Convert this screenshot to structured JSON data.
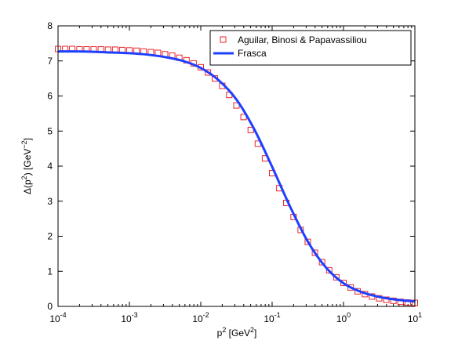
{
  "chart_data": {
    "type": "line",
    "x_scale": "log",
    "xlim": [
      0.0001,
      10
    ],
    "ylim": [
      0,
      8
    ],
    "xlabel": {
      "base": "p",
      "sup": "2",
      "unit_open": " [GeV",
      "unit_sup": "2",
      "unit_close": "]"
    },
    "ylabel": {
      "prefix": "Δ(p",
      "sup": "2",
      "middle": ") [GeV",
      "unit_sup": "−2",
      "suffix": "]"
    },
    "x_ticks": [
      {
        "base": "10",
        "exp": "-4"
      },
      {
        "base": "10",
        "exp": "-3"
      },
      {
        "base": "10",
        "exp": "-2"
      },
      {
        "base": "10",
        "exp": "-1"
      },
      {
        "base": "10",
        "exp": "0"
      },
      {
        "base": "10",
        "exp": "1"
      }
    ],
    "y_ticks": [
      "0",
      "1",
      "2",
      "3",
      "4",
      "5",
      "6",
      "7",
      "8"
    ],
    "legend_position": "top-right",
    "series": [
      {
        "name": "Aguilar, Binosi & Papavassiliou",
        "style": "markers",
        "marker": "square",
        "color": "#e8252a",
        "x": [
          0.0001,
          0.000126,
          0.000158,
          0.0002,
          0.000251,
          0.000316,
          0.000398,
          0.000501,
          0.000631,
          0.000794,
          0.001,
          0.00126,
          0.00158,
          0.002,
          0.00251,
          0.00316,
          0.00398,
          0.00501,
          0.00631,
          0.00794,
          0.01,
          0.0126,
          0.0158,
          0.02,
          0.0251,
          0.0316,
          0.0398,
          0.0501,
          0.0631,
          0.0794,
          0.1,
          0.126,
          0.158,
          0.2,
          0.251,
          0.316,
          0.398,
          0.501,
          0.631,
          0.794,
          1,
          1.26,
          1.58,
          2,
          2.51,
          3.16,
          3.98,
          5.01,
          6.31,
          7.94,
          10
        ],
        "y": [
          7.34,
          7.34,
          7.34,
          7.33,
          7.33,
          7.33,
          7.33,
          7.32,
          7.32,
          7.31,
          7.3,
          7.29,
          7.27,
          7.25,
          7.23,
          7.19,
          7.15,
          7.09,
          7.02,
          6.93,
          6.82,
          6.67,
          6.5,
          6.29,
          6.03,
          5.73,
          5.4,
          5.03,
          4.64,
          4.22,
          3.8,
          3.37,
          2.95,
          2.55,
          2.18,
          1.84,
          1.53,
          1.26,
          1.03,
          0.83,
          0.67,
          0.54,
          0.43,
          0.35,
          0.28,
          0.23,
          0.19,
          0.16,
          0.13,
          0.11,
          0.1
        ]
      },
      {
        "name": "Frasca",
        "style": "line",
        "color": "#1f3fff",
        "x": [
          0.0001,
          0.000178,
          0.000316,
          0.000562,
          0.001,
          0.00178,
          0.00316,
          0.00562,
          0.01,
          0.0178,
          0.0316,
          0.0562,
          0.1,
          0.178,
          0.316,
          0.562,
          1,
          1.78,
          3.16,
          5.62,
          10
        ],
        "y": [
          7.27,
          7.27,
          7.26,
          7.24,
          7.22,
          7.18,
          7.11,
          7.0,
          6.8,
          6.45,
          5.9,
          5.05,
          3.98,
          2.85,
          1.85,
          1.12,
          0.66,
          0.41,
          0.27,
          0.19,
          0.14
        ]
      }
    ]
  }
}
